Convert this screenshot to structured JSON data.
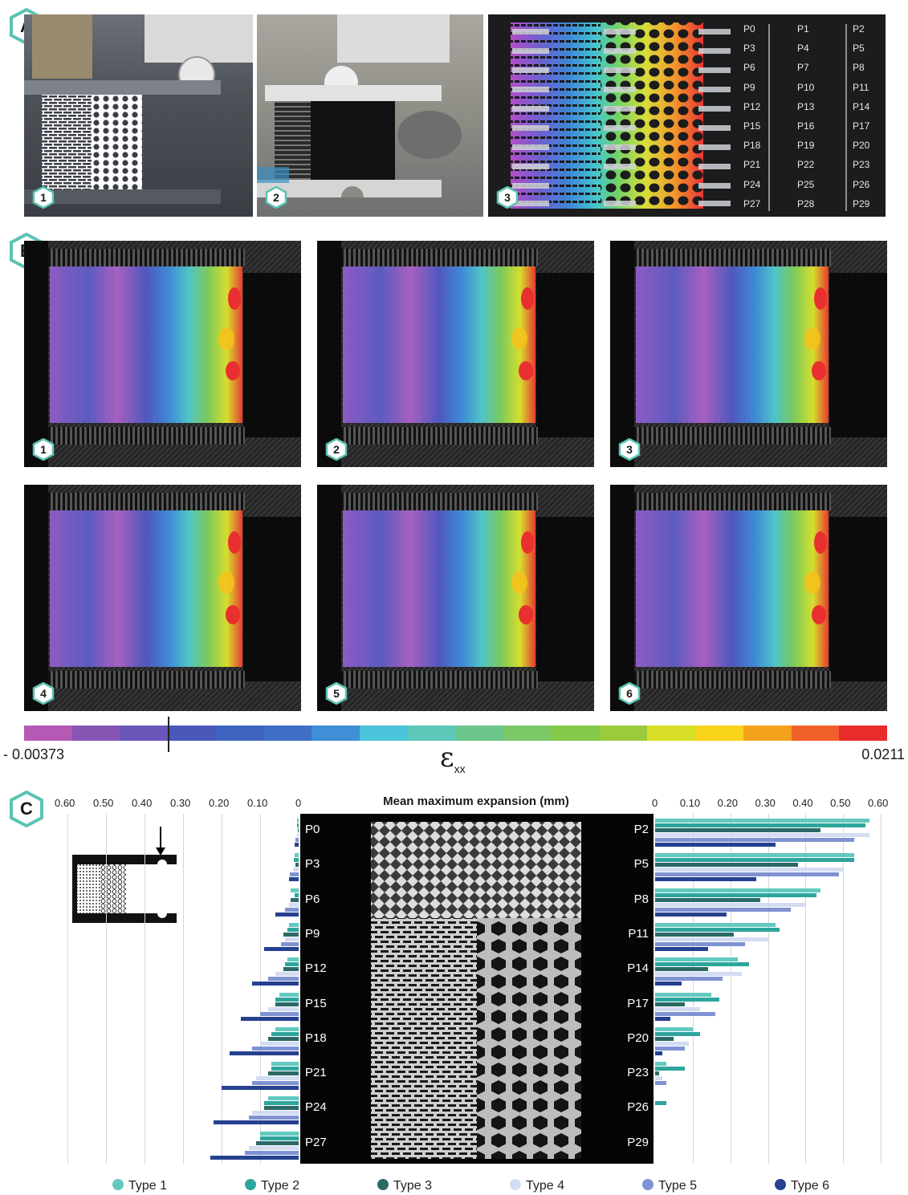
{
  "panel_labels": {
    "A": "A",
    "B": "B",
    "C": "C"
  },
  "panelA": {
    "sub_labels": [
      "1",
      "2",
      "3"
    ],
    "point_table": [
      [
        "P0",
        "P1",
        "P2"
      ],
      [
        "P3",
        "P4",
        "P5"
      ],
      [
        "P6",
        "P7",
        "P8"
      ],
      [
        "P9",
        "P10",
        "P11"
      ],
      [
        "P12",
        "P13",
        "P14"
      ],
      [
        "P15",
        "P16",
        "P17"
      ],
      [
        "P18",
        "P19",
        "P20"
      ],
      [
        "P21",
        "P22",
        "P23"
      ],
      [
        "P24",
        "P25",
        "P26"
      ],
      [
        "P27",
        "P28",
        "P29"
      ]
    ]
  },
  "panelB": {
    "sub_labels": [
      "1",
      "2",
      "3",
      "4",
      "5",
      "6"
    ],
    "colorbar": {
      "min_label": "- 0.00373",
      "max_label": "0.0211",
      "symbol": "ε",
      "subscript": "xx",
      "colors": [
        "#b45ab4",
        "#8656b4",
        "#6a55b8",
        "#4a58b8",
        "#3d62c0",
        "#3f6fc4",
        "#3f8ed6",
        "#4bc3db",
        "#5bc8b8",
        "#6bc58a",
        "#7cc866",
        "#86c94a",
        "#9acb3c",
        "#d6de26",
        "#f8d31a",
        "#f6a11e",
        "#f1602a",
        "#ea2b2b"
      ]
    }
  },
  "panelC": {
    "title": "Mean maximum expansion",
    "title_unit": "(mm)",
    "left_ticks": [
      "0.60",
      "0.50",
      "0.40",
      "0.30",
      "0.20",
      "0.10",
      "0"
    ],
    "right_ticks": [
      "0",
      "0.10",
      "0.20",
      "0.30",
      "0.40",
      "0.50",
      "0.60"
    ],
    "legend": [
      "Type 1",
      "Type 2",
      "Type 3",
      "Type 4",
      "Type 5",
      "Type 6"
    ],
    "colors": {
      "Type 1": "#62c9c0",
      "Type 2": "#2ea59d",
      "Type 3": "#2c6a66",
      "Type 4": "#d3dcf1",
      "Type 5": "#7f93d2",
      "Type 6": "#25418f"
    }
  },
  "chart_data": {
    "type": "bar",
    "title": "Mean maximum expansion (mm)",
    "series_names": [
      "Type 1",
      "Type 2",
      "Type 3",
      "Type 4",
      "Type 5",
      "Type 6"
    ],
    "left_categories": [
      "P0",
      "P3",
      "P6",
      "P9",
      "P12",
      "P15",
      "P18",
      "P21",
      "P24",
      "P27"
    ],
    "left_values": [
      [
        0.005,
        0.004,
        0.003,
        0.005,
        0.008,
        0.01
      ],
      [
        0.01,
        0.012,
        0.008,
        0.015,
        0.022,
        0.025
      ],
      [
        0.02,
        0.01,
        0.02,
        0.025,
        0.035,
        0.06
      ],
      [
        0.025,
        0.03,
        0.04,
        0.035,
        0.045,
        0.09
      ],
      [
        0.03,
        0.035,
        0.04,
        0.06,
        0.08,
        0.12
      ],
      [
        0.05,
        0.06,
        0.06,
        0.08,
        0.1,
        0.15
      ],
      [
        0.06,
        0.07,
        0.08,
        0.1,
        0.12,
        0.18
      ],
      [
        0.07,
        0.07,
        0.08,
        0.11,
        0.12,
        0.2
      ],
      [
        0.08,
        0.09,
        0.09,
        0.12,
        0.13,
        0.22
      ],
      [
        0.1,
        0.1,
        0.11,
        0.13,
        0.14,
        0.23
      ]
    ],
    "right_categories": [
      "P2",
      "P5",
      "P8",
      "P11",
      "P14",
      "P17",
      "P20",
      "P23",
      "P26",
      "P29"
    ],
    "right_values": [
      [
        0.57,
        0.56,
        0.44,
        0.57,
        0.53,
        0.32
      ],
      [
        0.53,
        0.53,
        0.38,
        0.5,
        0.49,
        0.27
      ],
      [
        0.44,
        0.43,
        0.28,
        0.4,
        0.36,
        0.19
      ],
      [
        0.32,
        0.33,
        0.21,
        0.3,
        0.24,
        0.14
      ],
      [
        0.22,
        0.25,
        0.14,
        0.23,
        0.18,
        0.07
      ],
      [
        0.15,
        0.17,
        0.08,
        0.12,
        0.16,
        0.04
      ],
      [
        0.1,
        0.12,
        0.05,
        0.09,
        0.08,
        0.02
      ],
      [
        0.03,
        0.08,
        0.01,
        0.02,
        0.03,
        0.0
      ],
      [
        0.0,
        0.03,
        0.0,
        0.0,
        0.0,
        0.0
      ],
      [
        0.0,
        0.0,
        0.0,
        0.0,
        0.0,
        0.0
      ]
    ],
    "xlim": [
      0,
      0.6
    ]
  }
}
